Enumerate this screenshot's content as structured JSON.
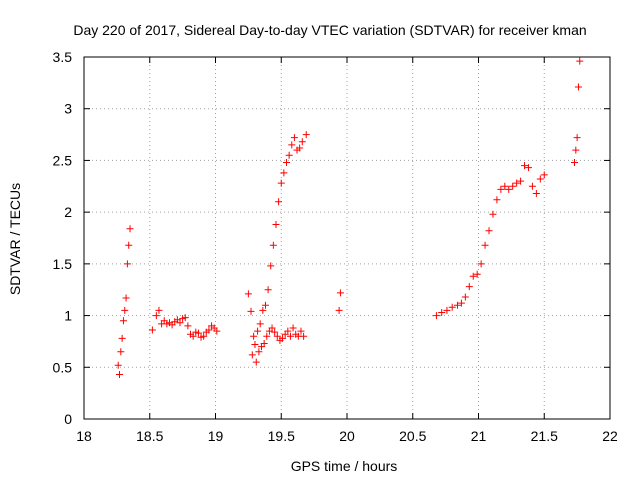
{
  "chart_data": {
    "type": "scatter",
    "title": "Day 220 of 2017, Sidereal Day-to-day VTEC variation (SDTVAR) for receiver kman",
    "xlabel": "GPS time / hours",
    "ylabel": "SDTVAR / TECUs",
    "xlim": [
      18,
      22
    ],
    "ylim": [
      0,
      3.5
    ],
    "xticks": [
      18,
      18.5,
      19,
      19.5,
      20,
      20.5,
      21,
      21.5,
      22
    ],
    "xtick_labels": [
      "18",
      "18.5",
      "19",
      "19.5",
      "20",
      "20.5",
      "21",
      "21.5",
      "22"
    ],
    "yticks": [
      0,
      0.5,
      1,
      1.5,
      2,
      2.5,
      3,
      3.5
    ],
    "ytick_labels": [
      "0",
      "0.5",
      "1",
      "1.5",
      "2",
      "2.5",
      "3",
      "3.5"
    ],
    "grid": true,
    "marker": "+",
    "color": "#ff0000",
    "series": [
      {
        "name": "SDTVAR",
        "x": [
          18.26,
          18.27,
          18.28,
          18.29,
          18.3,
          18.31,
          18.32,
          18.33,
          18.34,
          18.35,
          18.52,
          18.55,
          18.57,
          18.59,
          18.61,
          18.63,
          18.65,
          18.67,
          18.69,
          18.71,
          18.73,
          18.75,
          18.77,
          18.79,
          18.81,
          18.83,
          18.85,
          18.87,
          18.89,
          18.91,
          18.93,
          18.95,
          18.97,
          18.99,
          19.01,
          19.25,
          19.27,
          19.29,
          19.31,
          19.33,
          19.35,
          19.37,
          19.39,
          19.41,
          19.43,
          19.45,
          19.47,
          19.49,
          19.51,
          19.53,
          19.55,
          19.57,
          19.59,
          19.61,
          19.63,
          19.65,
          19.67,
          19.28,
          19.3,
          19.32,
          19.34,
          19.36,
          19.38,
          19.4,
          19.42,
          19.44,
          19.46,
          19.48,
          19.5,
          19.52,
          19.54,
          19.56,
          19.58,
          19.6,
          19.62,
          19.64,
          19.66,
          19.69,
          19.94,
          19.95,
          20.68,
          20.72,
          20.76,
          20.8,
          20.84,
          20.87,
          20.9,
          20.93,
          20.96,
          20.99,
          21.02,
          21.05,
          21.08,
          21.11,
          21.14,
          21.17,
          21.2,
          21.23,
          21.26,
          21.29,
          21.32,
          21.35,
          21.38,
          21.41,
          21.44,
          21.47,
          21.5,
          21.73,
          21.74,
          21.75,
          21.76,
          21.77
        ],
        "y": [
          0.52,
          0.43,
          0.65,
          0.78,
          0.95,
          1.05,
          1.17,
          1.5,
          1.68,
          1.84,
          0.86,
          1.0,
          1.05,
          0.92,
          0.95,
          0.92,
          0.93,
          0.91,
          0.94,
          0.96,
          0.93,
          0.97,
          0.98,
          0.9,
          0.82,
          0.8,
          0.84,
          0.83,
          0.79,
          0.8,
          0.84,
          0.86,
          0.9,
          0.88,
          0.85,
          1.21,
          1.04,
          0.8,
          0.55,
          0.65,
          0.7,
          0.73,
          0.8,
          0.85,
          0.88,
          0.84,
          0.8,
          0.76,
          0.78,
          0.82,
          0.85,
          0.8,
          0.88,
          0.82,
          0.8,
          0.85,
          0.8,
          0.62,
          0.72,
          0.85,
          0.92,
          1.05,
          1.1,
          1.25,
          1.48,
          1.68,
          1.88,
          2.1,
          2.28,
          2.38,
          2.48,
          2.55,
          2.65,
          2.72,
          2.6,
          2.62,
          2.68,
          2.75,
          1.05,
          1.22,
          1.0,
          1.03,
          1.05,
          1.08,
          1.1,
          1.12,
          1.18,
          1.28,
          1.38,
          1.4,
          1.5,
          1.68,
          1.82,
          1.98,
          2.12,
          2.22,
          2.25,
          2.22,
          2.25,
          2.28,
          2.3,
          2.45,
          2.43,
          2.25,
          2.18,
          2.32,
          2.36,
          2.48,
          2.6,
          2.72,
          3.21,
          3.46
        ]
      }
    ]
  }
}
